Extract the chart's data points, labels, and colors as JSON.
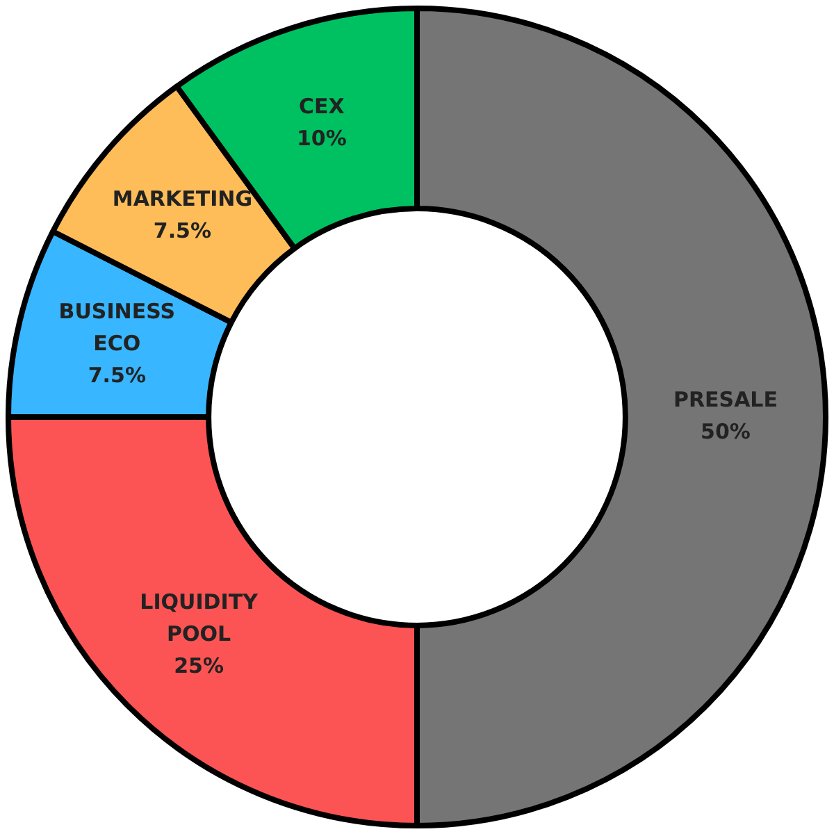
{
  "chart_data": {
    "type": "donut",
    "categories": [
      "PRESALE",
      "LIQUIDITY POOL",
      "BUSINESS ECO",
      "MARKETING",
      "CEX"
    ],
    "values": [
      50,
      25,
      7.5,
      7.5,
      10
    ],
    "colors": [
      "#757575",
      "#fc5454",
      "#38b6ff",
      "#ffbd59",
      "#00c162"
    ],
    "value_labels": [
      "50%",
      "25%",
      "7.5%",
      "7.5%",
      "10%"
    ],
    "legend": false
  }
}
